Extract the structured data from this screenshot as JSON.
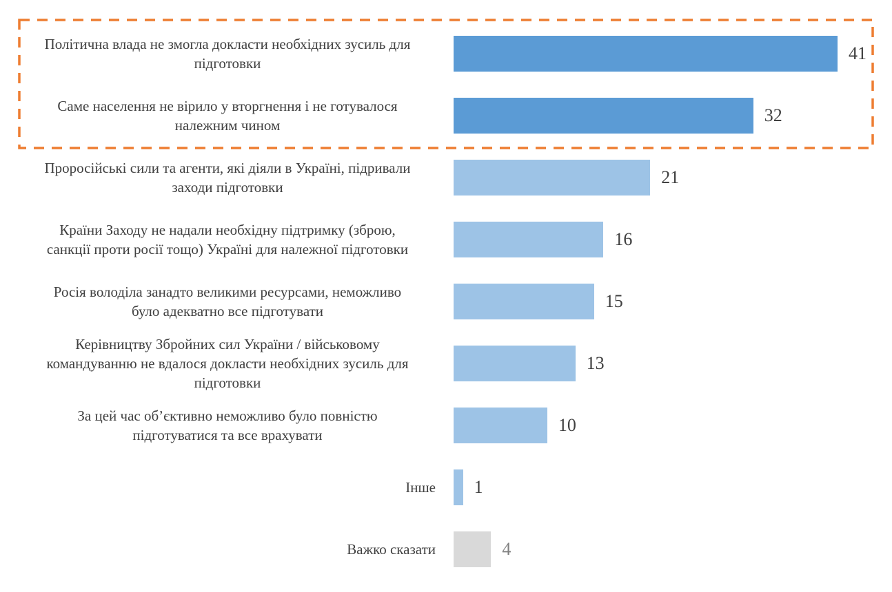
{
  "chart_data": {
    "type": "bar",
    "orientation": "horizontal",
    "categories": [
      "Політична влада не змогла докласти необхідних зусиль для\nпідготовки",
      "Саме населення не вірило у вторгнення і не готувалося\nналежним чином",
      "Проросійські сили та агенти, які діяли в Україні, підривали\nзаходи підготовки",
      "Країни Заходу не надали необхідну підтримку (зброю,\nсанкції проти росії тощо) Україні для належної підготовки",
      "Росія володіла занадто великими ресурсами, неможливо\nбуло адекватно все підготувати",
      "Керівництву Збройних сил України / військовому\nкомандуванню не вдалося докласти необхідних зусиль для\nпідготовки",
      "За цей час об’єктивно неможливо було повністю\nпідготуватися та все врахувати",
      "Інше",
      "Важко сказати"
    ],
    "values": [
      41,
      32,
      21,
      16,
      15,
      13,
      10,
      1,
      4
    ],
    "bar_colors": [
      "#5B9BD5",
      "#5B9BD5",
      "#9DC3E6",
      "#9DC3E6",
      "#9DC3E6",
      "#9DC3E6",
      "#9DC3E6",
      "#9DC3E6",
      "#D9D9D9"
    ],
    "value_label_colors": [
      "#404040",
      "#404040",
      "#404040",
      "#404040",
      "#404040",
      "#404040",
      "#404040",
      "#404040",
      "#808080"
    ],
    "highlight": {
      "rows": [
        0,
        1
      ],
      "style": "dashed",
      "color": "#ED7D31"
    },
    "xlim": [
      0,
      41
    ],
    "grid": false,
    "legend": "none"
  }
}
